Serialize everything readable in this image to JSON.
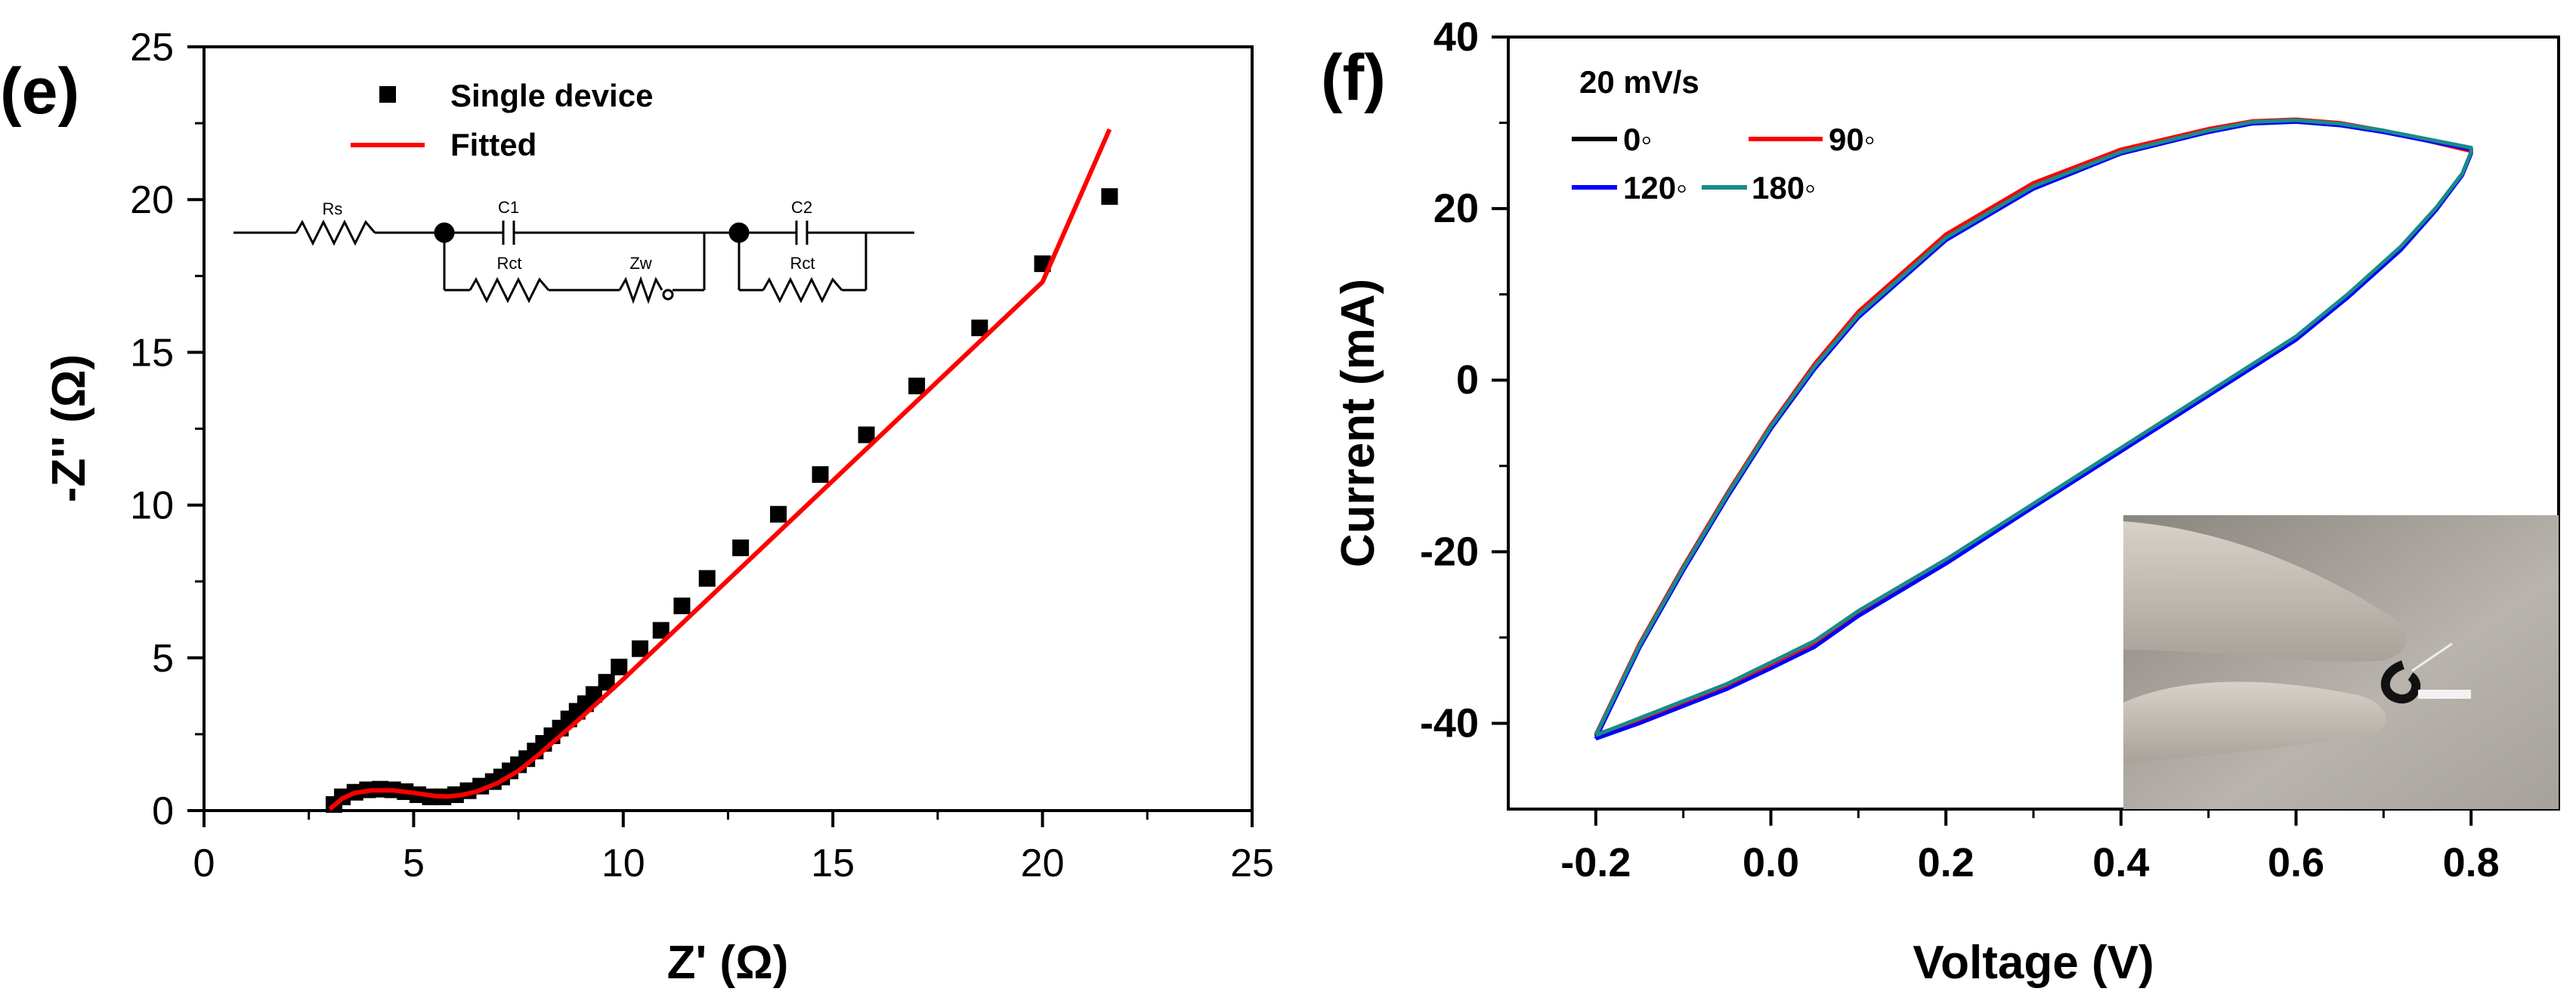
{
  "chart_data": [
    {
      "panel": "(e)",
      "type": "scatter",
      "xlabel": "Z' (Ω)",
      "ylabel": "-Z'' (Ω)",
      "xlim": [
        0,
        25
      ],
      "ylim": [
        0,
        25
      ],
      "x_ticks": [
        0,
        5,
        10,
        15,
        20,
        25
      ],
      "y_ticks": [
        0,
        5,
        10,
        15,
        20,
        25
      ],
      "legend": [
        "Single device",
        "Fitted"
      ],
      "circuit_labels": [
        "Rs",
        "C1",
        "Rct",
        "Zw",
        "C2",
        "Rct"
      ],
      "series": [
        {
          "name": "Single device",
          "marker": "square",
          "color": "#000000",
          "x": [
            3.1,
            3.3,
            3.6,
            3.9,
            4.2,
            4.5,
            4.8,
            5.1,
            5.4,
            5.7,
            6.0,
            6.3,
            6.6,
            6.9,
            7.1,
            7.3,
            7.5,
            7.7,
            7.9,
            8.1,
            8.3,
            8.5,
            8.7,
            8.9,
            9.1,
            9.3,
            9.6,
            9.9,
            10.4,
            10.9,
            11.4,
            12.0,
            12.8,
            13.7,
            14.7,
            15.8,
            17.0,
            18.5,
            20.0,
            21.6
          ],
          "y": [
            0.2,
            0.45,
            0.6,
            0.68,
            0.7,
            0.68,
            0.62,
            0.52,
            0.45,
            0.45,
            0.52,
            0.65,
            0.8,
            0.95,
            1.1,
            1.3,
            1.5,
            1.7,
            1.95,
            2.2,
            2.45,
            2.7,
            3.0,
            3.25,
            3.5,
            3.8,
            4.2,
            4.7,
            5.3,
            5.9,
            6.7,
            7.6,
            8.6,
            9.7,
            11.0,
            12.3,
            13.9,
            15.8,
            17.9,
            20.1
          ]
        },
        {
          "name": "Fitted",
          "marker": "line",
          "color": "#ff0000",
          "x": [
            3.0,
            3.3,
            3.6,
            4.0,
            4.5,
            5.0,
            5.5,
            5.8,
            6.1,
            6.5,
            7.0,
            7.5,
            8.0,
            9.0,
            10.0,
            12.0,
            14.0,
            16.0,
            18.0,
            20.0,
            21.6
          ],
          "y": [
            0.05,
            0.4,
            0.58,
            0.66,
            0.66,
            0.58,
            0.48,
            0.46,
            0.5,
            0.62,
            0.9,
            1.3,
            1.85,
            3.05,
            4.3,
            6.9,
            9.5,
            12.1,
            14.7,
            17.3,
            22.3
          ]
        }
      ]
    },
    {
      "panel": "(f)",
      "type": "line",
      "xlabel": "Voltage (V)",
      "ylabel": "Current (mA)",
      "xlim": [
        -0.3,
        0.9
      ],
      "ylim": [
        -50,
        40
      ],
      "x_ticks": [
        -0.2,
        0.0,
        0.2,
        0.4,
        0.6,
        0.8
      ],
      "x_tick_labels": [
        "-0.2",
        "0.0",
        "0.2",
        "0.4",
        "0.6",
        "0.8"
      ],
      "y_ticks": [
        -40,
        -20,
        0,
        20,
        40
      ],
      "annotation": "20 mV/s",
      "legend": [
        "0◦",
        "90◦",
        "120◦",
        "180◦"
      ],
      "series": [
        {
          "name": "0◦",
          "color": "#000000",
          "x": [
            -0.2,
            -0.15,
            -0.1,
            -0.05,
            0.0,
            0.05,
            0.1,
            0.2,
            0.3,
            0.4,
            0.5,
            0.55,
            0.6,
            0.65,
            0.7,
            0.75,
            0.8,
            0.8,
            0.79,
            0.76,
            0.72,
            0.66,
            0.6,
            0.5,
            0.4,
            0.3,
            0.2,
            0.1,
            0.05,
            0.0,
            -0.05,
            -0.1,
            -0.15,
            -0.2
          ],
          "y": [
            -41.5,
            -31.0,
            -22.0,
            -13.5,
            -5.5,
            1.5,
            7.5,
            16.5,
            22.5,
            26.5,
            29.0,
            30.0,
            30.2,
            29.8,
            29.0,
            28.0,
            27.0,
            26.5,
            24.0,
            20.0,
            15.5,
            10.0,
            5.0,
            -1.5,
            -8.0,
            -14.5,
            -21.0,
            -27.0,
            -30.5,
            -33.0,
            -35.5,
            -37.5,
            -39.5,
            -41.5
          ]
        },
        {
          "name": "90◦",
          "color": "#ff0000",
          "x": [
            -0.2,
            -0.15,
            -0.1,
            -0.05,
            0.0,
            0.05,
            0.1,
            0.2,
            0.3,
            0.4,
            0.5,
            0.55,
            0.6,
            0.65,
            0.7,
            0.75,
            0.8,
            0.8,
            0.79,
            0.76,
            0.72,
            0.66,
            0.6,
            0.5,
            0.4,
            0.3,
            0.2,
            0.1,
            0.05,
            0.0,
            -0.05,
            -0.1,
            -0.15,
            -0.2
          ],
          "y": [
            -41.3,
            -30.7,
            -21.7,
            -13.2,
            -5.2,
            1.9,
            8.0,
            17.0,
            23.0,
            26.9,
            29.3,
            30.2,
            30.4,
            30.0,
            29.1,
            27.9,
            26.7,
            26.4,
            23.9,
            19.9,
            15.4,
            9.9,
            4.9,
            -1.6,
            -8.1,
            -14.6,
            -21.1,
            -27.1,
            -30.6,
            -33.1,
            -35.6,
            -37.6,
            -39.6,
            -41.3
          ]
        },
        {
          "name": "120◦",
          "color": "#0000ff",
          "x": [
            -0.2,
            -0.15,
            -0.1,
            -0.05,
            0.0,
            0.05,
            0.1,
            0.2,
            0.3,
            0.4,
            0.5,
            0.55,
            0.6,
            0.65,
            0.7,
            0.75,
            0.8,
            0.8,
            0.79,
            0.76,
            0.72,
            0.66,
            0.6,
            0.5,
            0.4,
            0.3,
            0.2,
            0.1,
            0.05,
            0.0,
            -0.05,
            -0.1,
            -0.15,
            -0.2
          ],
          "y": [
            -41.8,
            -31.2,
            -22.2,
            -13.7,
            -5.7,
            1.3,
            7.3,
            16.3,
            22.3,
            26.4,
            28.9,
            29.9,
            30.1,
            29.7,
            28.9,
            27.9,
            26.9,
            26.4,
            23.9,
            19.8,
            15.2,
            9.7,
            4.7,
            -1.8,
            -8.3,
            -14.8,
            -21.4,
            -27.5,
            -31.1,
            -33.6,
            -36.0,
            -38.0,
            -40.0,
            -41.8
          ]
        },
        {
          "name": "180◦",
          "color": "#1a8a8a",
          "x": [
            -0.2,
            -0.15,
            -0.1,
            -0.05,
            0.0,
            0.05,
            0.1,
            0.2,
            0.3,
            0.4,
            0.5,
            0.55,
            0.6,
            0.65,
            0.7,
            0.75,
            0.8,
            0.8,
            0.79,
            0.76,
            0.72,
            0.66,
            0.6,
            0.5,
            0.4,
            0.3,
            0.2,
            0.1,
            0.05,
            0.0,
            -0.05,
            -0.1,
            -0.15,
            -0.2
          ],
          "y": [
            -41.4,
            -30.9,
            -21.9,
            -13.4,
            -5.4,
            1.6,
            7.6,
            16.6,
            22.6,
            26.6,
            29.1,
            30.1,
            30.3,
            29.9,
            29.1,
            28.1,
            27.1,
            26.6,
            24.1,
            20.1,
            15.6,
            10.1,
            5.1,
            -1.4,
            -7.9,
            -14.4,
            -20.9,
            -26.9,
            -30.4,
            -32.9,
            -35.4,
            -37.4,
            -39.4,
            -41.4
          ]
        }
      ]
    }
  ]
}
